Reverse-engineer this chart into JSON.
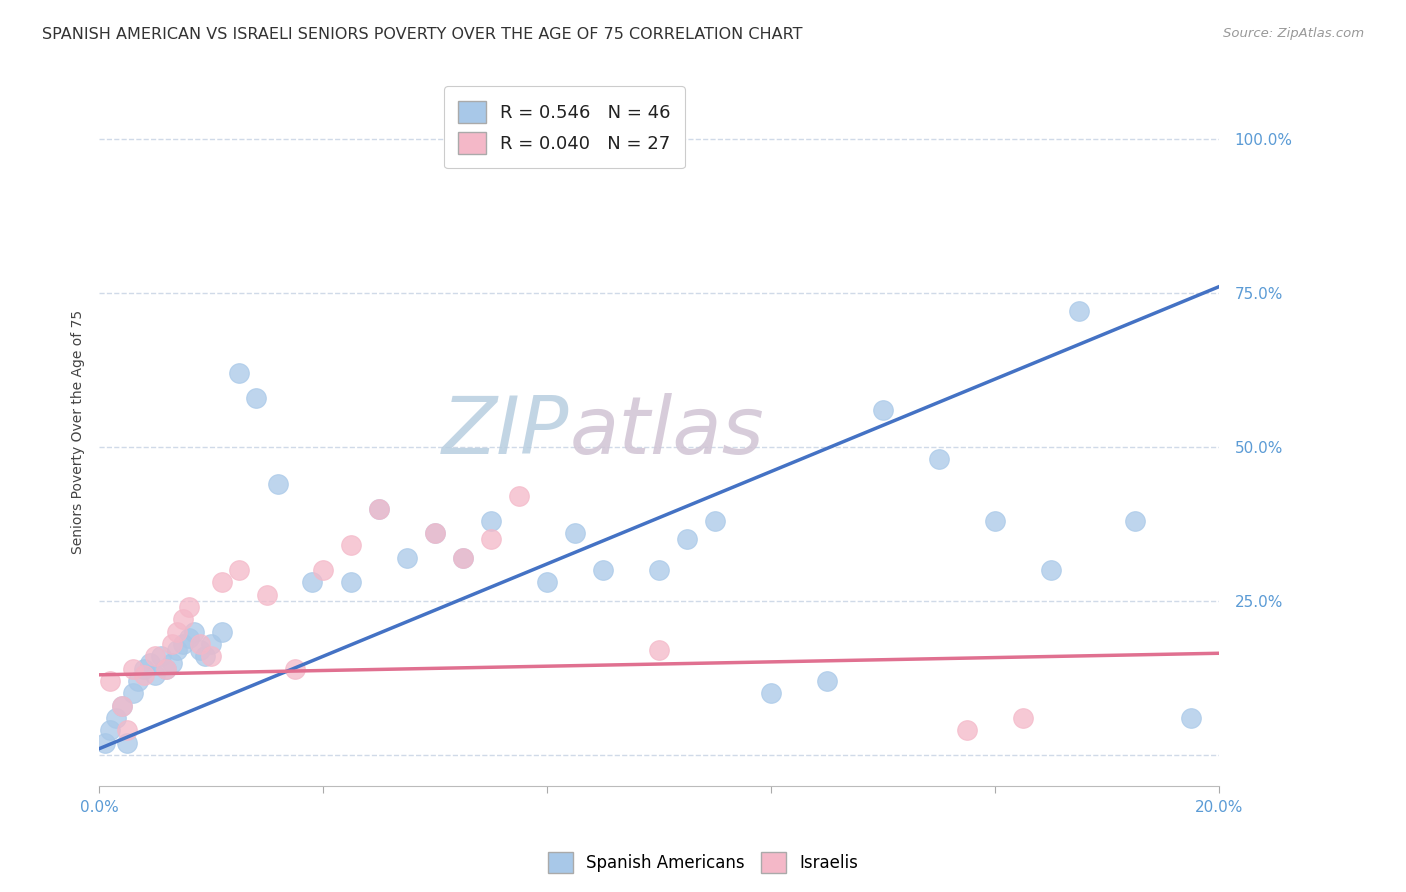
{
  "title": "SPANISH AMERICAN VS ISRAELI SENIORS POVERTY OVER THE AGE OF 75 CORRELATION CHART",
  "source": "Source: ZipAtlas.com",
  "ylabel": "Seniors Poverty Over the Age of 75",
  "xlim": [
    0.0,
    0.2
  ],
  "ylim": [
    -0.05,
    1.1
  ],
  "ytick_positions": [
    0.0,
    0.25,
    0.5,
    0.75,
    1.0
  ],
  "ytick_labels": [
    "",
    "25.0%",
    "50.0%",
    "75.0%",
    "100.0%"
  ],
  "blue_R": 0.546,
  "blue_N": 46,
  "pink_R": 0.04,
  "pink_N": 27,
  "blue_color": "#a8c8e8",
  "pink_color": "#f4b8c8",
  "blue_line_color": "#4472c4",
  "pink_line_color": "#e07090",
  "watermark_zip_color": "#c5d8ee",
  "watermark_atlas_color": "#d8c8d8",
  "grid_color": "#d0dae8",
  "background_color": "#ffffff",
  "title_fontsize": 11.5,
  "axis_label_fontsize": 10,
  "tick_fontsize": 11,
  "legend_fontsize": 13,
  "blue_scatter_x": [
    0.001,
    0.002,
    0.003,
    0.004,
    0.005,
    0.006,
    0.007,
    0.008,
    0.009,
    0.01,
    0.011,
    0.012,
    0.013,
    0.014,
    0.015,
    0.016,
    0.017,
    0.018,
    0.019,
    0.02,
    0.022,
    0.025,
    0.028,
    0.032,
    0.038,
    0.045,
    0.05,
    0.055,
    0.06,
    0.065,
    0.07,
    0.08,
    0.085,
    0.09,
    0.1,
    0.105,
    0.11,
    0.12,
    0.13,
    0.14,
    0.15,
    0.16,
    0.17,
    0.175,
    0.185,
    0.195
  ],
  "blue_scatter_y": [
    0.02,
    0.04,
    0.06,
    0.08,
    0.02,
    0.1,
    0.12,
    0.14,
    0.15,
    0.13,
    0.16,
    0.14,
    0.15,
    0.17,
    0.18,
    0.19,
    0.2,
    0.17,
    0.16,
    0.18,
    0.2,
    0.62,
    0.58,
    0.44,
    0.28,
    0.28,
    0.4,
    0.32,
    0.36,
    0.32,
    0.38,
    0.28,
    0.36,
    0.3,
    0.3,
    0.35,
    0.38,
    0.1,
    0.12,
    0.56,
    0.48,
    0.38,
    0.3,
    0.72,
    0.38,
    0.06
  ],
  "pink_scatter_x": [
    0.002,
    0.004,
    0.005,
    0.006,
    0.008,
    0.01,
    0.012,
    0.013,
    0.014,
    0.015,
    0.016,
    0.018,
    0.02,
    0.022,
    0.025,
    0.03,
    0.035,
    0.04,
    0.045,
    0.05,
    0.06,
    0.065,
    0.07,
    0.075,
    0.1,
    0.155,
    0.165
  ],
  "pink_scatter_y": [
    0.12,
    0.08,
    0.04,
    0.14,
    0.13,
    0.16,
    0.14,
    0.18,
    0.2,
    0.22,
    0.24,
    0.18,
    0.16,
    0.28,
    0.3,
    0.26,
    0.14,
    0.3,
    0.34,
    0.4,
    0.36,
    0.32,
    0.35,
    0.42,
    0.17,
    0.04,
    0.06
  ]
}
